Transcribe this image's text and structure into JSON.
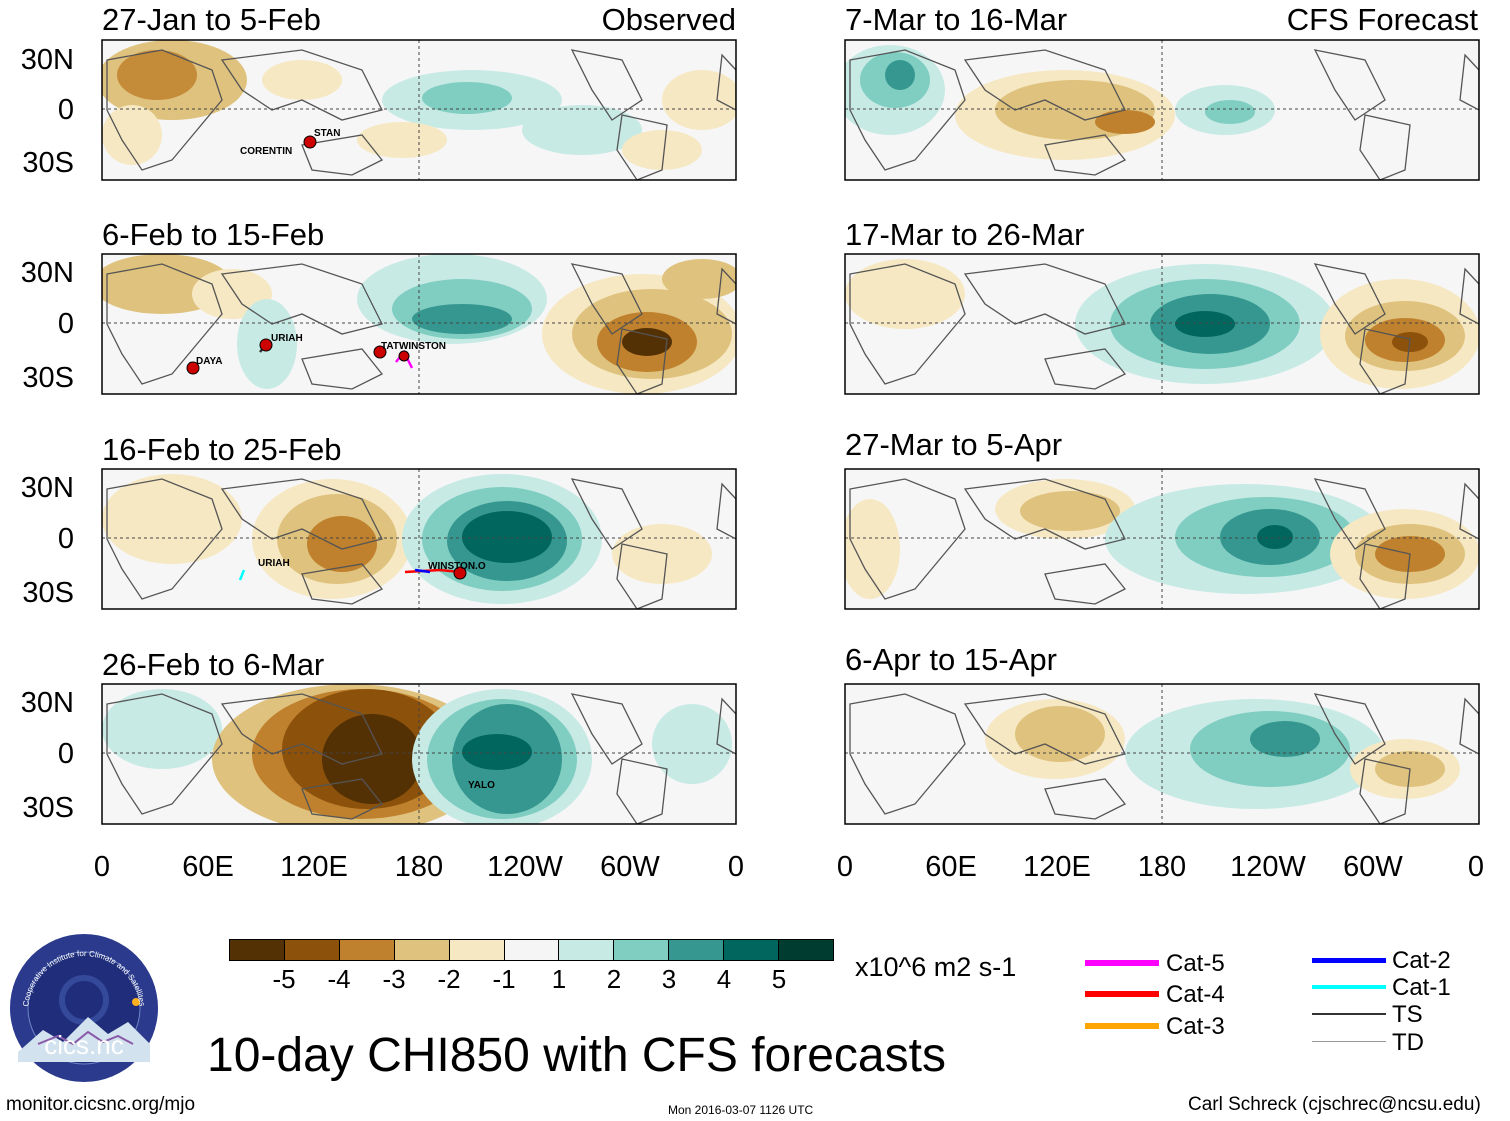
{
  "header": {
    "observed_label": "Observed",
    "forecast_label": "CFS Forecast"
  },
  "panels": {
    "observed": [
      {
        "title": "27-Jan to 5-Feb"
      },
      {
        "title": "6-Feb to 15-Feb"
      },
      {
        "title": "16-Feb to 25-Feb"
      },
      {
        "title": "26-Feb to 6-Mar"
      }
    ],
    "forecast": [
      {
        "title": "7-Mar to 16-Mar"
      },
      {
        "title": "17-Mar to 26-Mar"
      },
      {
        "title": "27-Mar to 5-Apr"
      },
      {
        "title": "6-Apr to 15-Apr"
      }
    ]
  },
  "axes": {
    "y_labels": [
      "30N",
      "0",
      "30S"
    ],
    "x_labels": [
      "0",
      "60E",
      "120E",
      "180",
      "120W",
      "60W",
      "0"
    ]
  },
  "storm_labels": {
    "p1_a": "STAN",
    "p1_b": "CORENTIN",
    "p2_a": "URIAH",
    "p2_b": "DAYA",
    "p2_c": "TATWINSTON",
    "p3_a": "URIAH",
    "p3_b": "WINSTON.O",
    "p4_a": "YALO"
  },
  "colorbar": {
    "labels": [
      "-5",
      "-4",
      "-3",
      "-2",
      "-1",
      "1",
      "2",
      "3",
      "4",
      "5"
    ],
    "colors": [
      "#543005",
      "#8c510a",
      "#bf812d",
      "#dfc27d",
      "#f6e8c3",
      "#f5f5f5",
      "#c7eae5",
      "#80cdc1",
      "#35978f",
      "#01665e",
      "#003c30"
    ],
    "units": "x10^6 m2 s-1"
  },
  "title": "10-day CHI850 with CFS forecasts",
  "legend": [
    {
      "label": "Cat-5",
      "color": "#ff00ff"
    },
    {
      "label": "Cat-4",
      "color": "#ff0000"
    },
    {
      "label": "Cat-3",
      "color": "#ffa500"
    },
    {
      "label": "Cat-2",
      "color": "#0000ff"
    },
    {
      "label": "Cat-1",
      "color": "#00ffff"
    },
    {
      "label": "TS",
      "color": "#333333"
    },
    {
      "label": "TD",
      "color": "#999999"
    }
  ],
  "logo": {
    "name": "cics.nc",
    "ring_text": "Cooperative Institute for Climate and Satellites"
  },
  "footer": {
    "url": "monitor.cicsnc.org/mjo",
    "timestamp": "Mon 2016-03-07 1126 UTC",
    "author": "Carl Schreck (cjschrec@ncsu.edu)"
  }
}
